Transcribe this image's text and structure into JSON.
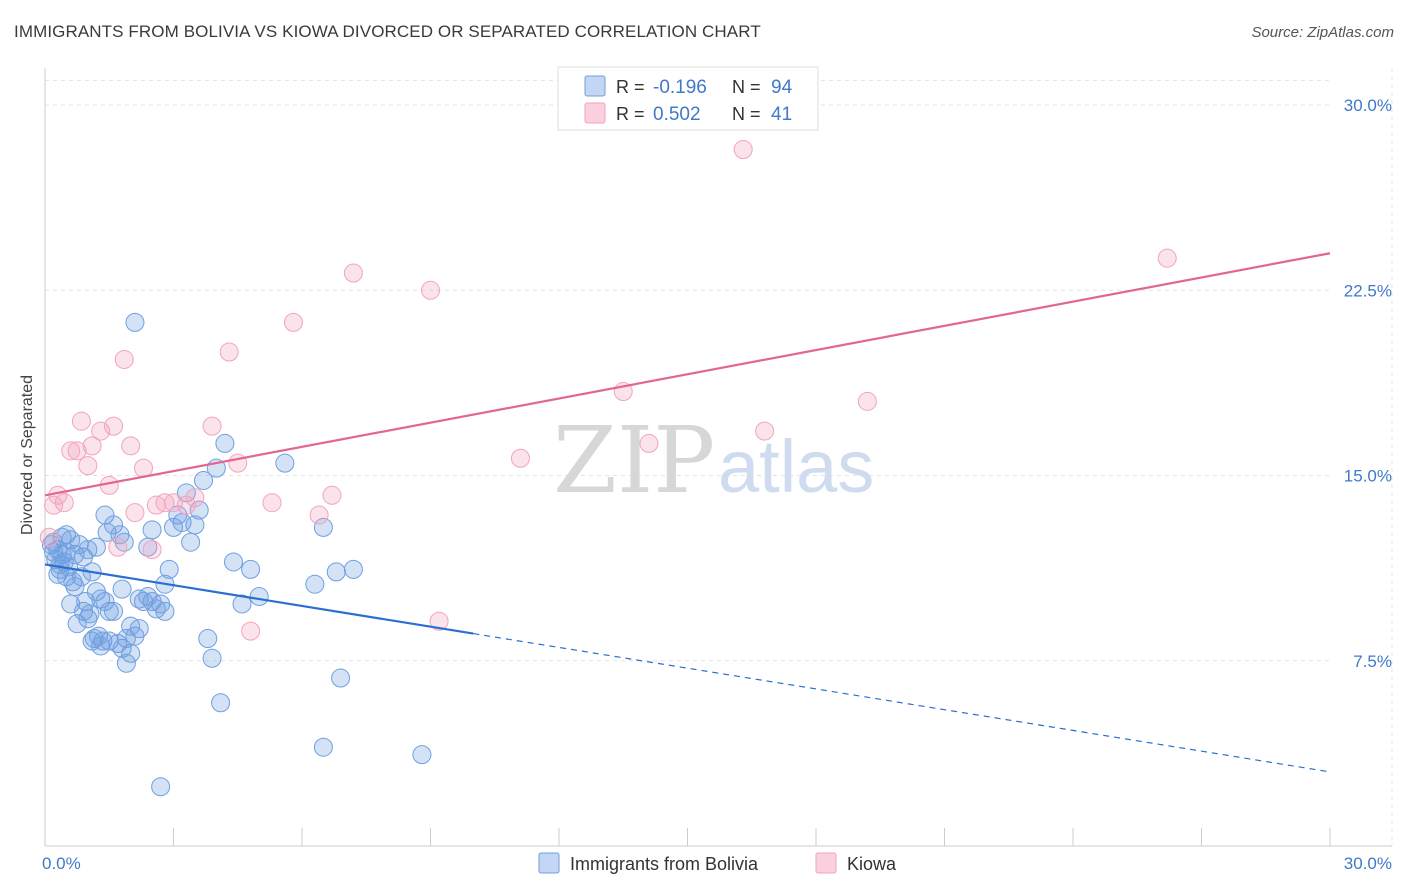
{
  "title": "IMMIGRANTS FROM BOLIVIA VS KIOWA DIVORCED OR SEPARATED CORRELATION CHART",
  "source": "Source: ZipAtlas.com",
  "watermark": {
    "zip": "ZIP",
    "atlas": "atlas"
  },
  "chart_data": {
    "type": "scatter",
    "ylabel": "Divorced or Separated",
    "xlim": [
      0,
      30
    ],
    "ylim": [
      0,
      31.5
    ],
    "x_tick_labels": [
      {
        "value": 0,
        "label": "0.0%"
      },
      {
        "value": 30,
        "label": "30.0%"
      }
    ],
    "y_tick_labels": [
      {
        "value": 7.5,
        "label": "7.5%"
      },
      {
        "value": 15,
        "label": "15.0%"
      },
      {
        "value": 22.5,
        "label": "22.5%"
      },
      {
        "value": 30,
        "label": "30.0%"
      }
    ],
    "grid": true,
    "legend_position": "top-center",
    "colors": {
      "bolivia": "#6f9fe0",
      "bolivia_line": "#2a6fcf",
      "kiowa": "#f2a3bd",
      "kiowa_line": "#e06792",
      "accent_text": "#3f79c8"
    },
    "series": [
      {
        "name": "Immigrants from Bolivia",
        "key": "bolivia",
        "r_label": "R =",
        "r": "-0.196",
        "n_label": "N =",
        "n": "94",
        "trend": {
          "x0": 0,
          "y0": 11.4,
          "x1": 10,
          "y1": 8.6,
          "dash_to_x": 30,
          "dash_to_y": 3.0
        },
        "points": [
          [
            0.2,
            12.3
          ],
          [
            0.3,
            12.0
          ],
          [
            0.25,
            11.6
          ],
          [
            0.35,
            11.2
          ],
          [
            0.4,
            12.5
          ],
          [
            0.5,
            11.9
          ],
          [
            0.3,
            11.0
          ],
          [
            0.45,
            11.5
          ],
          [
            0.6,
            12.4
          ],
          [
            0.7,
            11.8
          ],
          [
            0.55,
            11.3
          ],
          [
            0.8,
            12.2
          ],
          [
            0.9,
            11.7
          ],
          [
            1.0,
            12.0
          ],
          [
            0.65,
            10.7
          ],
          [
            0.85,
            10.9
          ],
          [
            1.1,
            11.1
          ],
          [
            1.2,
            10.3
          ],
          [
            1.3,
            10.0
          ],
          [
            1.4,
            9.9
          ],
          [
            1.5,
            9.5
          ],
          [
            0.7,
            10.5
          ],
          [
            0.95,
            9.9
          ],
          [
            1.05,
            9.4
          ],
          [
            1.15,
            8.4
          ],
          [
            1.25,
            8.5
          ],
          [
            1.35,
            8.3
          ],
          [
            1.5,
            8.3
          ],
          [
            1.7,
            8.2
          ],
          [
            1.8,
            8.0
          ],
          [
            1.9,
            8.4
          ],
          [
            2.1,
            8.5
          ],
          [
            2.0,
            8.9
          ],
          [
            2.2,
            8.8
          ],
          [
            2.3,
            9.9
          ],
          [
            2.4,
            10.1
          ],
          [
            2.5,
            9.9
          ],
          [
            2.6,
            9.6
          ],
          [
            2.7,
            9.8
          ],
          [
            2.8,
            10.6
          ],
          [
            2.9,
            11.2
          ],
          [
            3.0,
            12.9
          ],
          [
            3.1,
            13.4
          ],
          [
            3.3,
            14.3
          ],
          [
            3.5,
            13.0
          ],
          [
            3.7,
            14.8
          ],
          [
            3.8,
            8.4
          ],
          [
            3.9,
            7.6
          ],
          [
            4.0,
            15.3
          ],
          [
            4.2,
            16.3
          ],
          [
            4.4,
            11.5
          ],
          [
            4.6,
            9.8
          ],
          [
            4.8,
            11.2
          ],
          [
            5.0,
            10.1
          ],
          [
            5.6,
            15.5
          ],
          [
            6.3,
            10.6
          ],
          [
            6.5,
            12.9
          ],
          [
            6.8,
            11.1
          ],
          [
            7.2,
            11.2
          ],
          [
            2.1,
            21.2
          ],
          [
            1.4,
            13.4
          ],
          [
            1.6,
            13.0
          ],
          [
            1.75,
            12.6
          ],
          [
            1.85,
            12.3
          ],
          [
            0.5,
            10.9
          ],
          [
            0.6,
            9.8
          ],
          [
            0.75,
            9.0
          ],
          [
            0.9,
            9.5
          ],
          [
            1.0,
            9.2
          ],
          [
            1.1,
            8.3
          ],
          [
            1.3,
            8.1
          ],
          [
            1.6,
            9.5
          ],
          [
            1.8,
            10.4
          ],
          [
            1.9,
            7.4
          ],
          [
            2.0,
            7.8
          ],
          [
            2.5,
            12.8
          ],
          [
            2.4,
            12.1
          ],
          [
            3.4,
            12.3
          ],
          [
            4.1,
            5.8
          ],
          [
            6.9,
            6.8
          ],
          [
            6.5,
            4.0
          ],
          [
            8.8,
            3.7
          ],
          [
            2.7,
            2.4
          ],
          [
            0.2,
            11.9
          ],
          [
            0.15,
            12.2
          ],
          [
            0.4,
            11.8
          ],
          [
            0.5,
            12.6
          ],
          [
            1.2,
            12.1
          ],
          [
            2.2,
            10.0
          ],
          [
            2.8,
            9.5
          ],
          [
            3.2,
            13.1
          ],
          [
            3.6,
            13.6
          ],
          [
            1.45,
            12.7
          ],
          [
            0.35,
            11.4
          ]
        ]
      },
      {
        "name": "Kiowa",
        "key": "kiowa",
        "r_label": "R =",
        "r": "0.502",
        "n_label": "N =",
        "n": "41",
        "trend": {
          "x0": 0,
          "y0": 14.2,
          "x1": 30,
          "y1": 24.0
        },
        "points": [
          [
            0.1,
            12.5
          ],
          [
            0.2,
            13.8
          ],
          [
            0.3,
            14.2
          ],
          [
            0.45,
            13.9
          ],
          [
            0.6,
            16.0
          ],
          [
            0.75,
            16.0
          ],
          [
            0.85,
            17.2
          ],
          [
            1.0,
            15.4
          ],
          [
            1.1,
            16.2
          ],
          [
            1.3,
            16.8
          ],
          [
            1.5,
            14.6
          ],
          [
            1.6,
            17.0
          ],
          [
            1.7,
            12.1
          ],
          [
            1.85,
            19.7
          ],
          [
            2.0,
            16.2
          ],
          [
            2.1,
            13.5
          ],
          [
            2.3,
            15.3
          ],
          [
            2.5,
            12.0
          ],
          [
            2.6,
            13.8
          ],
          [
            2.8,
            13.9
          ],
          [
            3.0,
            13.9
          ],
          [
            3.3,
            13.8
          ],
          [
            3.5,
            14.1
          ],
          [
            3.9,
            17.0
          ],
          [
            4.3,
            20.0
          ],
          [
            4.5,
            15.5
          ],
          [
            5.3,
            13.9
          ],
          [
            5.8,
            21.2
          ],
          [
            6.4,
            13.4
          ],
          [
            6.7,
            14.2
          ],
          [
            7.2,
            23.2
          ],
          [
            9.0,
            22.5
          ],
          [
            9.2,
            9.1
          ],
          [
            11.1,
            15.7
          ],
          [
            13.5,
            18.4
          ],
          [
            14.1,
            16.3
          ],
          [
            16.3,
            28.2
          ],
          [
            16.8,
            16.8
          ],
          [
            19.2,
            18.0
          ],
          [
            26.2,
            23.8
          ],
          [
            4.8,
            8.7
          ]
        ]
      }
    ]
  }
}
